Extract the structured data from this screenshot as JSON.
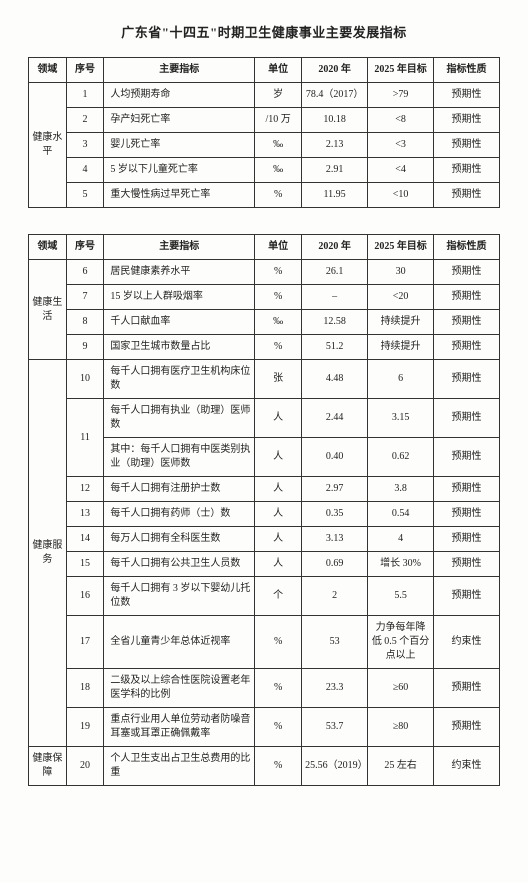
{
  "title": "广东省\"十四五\"时期卫生健康事业主要发展指标",
  "headers": {
    "domain": "领域",
    "seq": "序号",
    "indicator": "主要指标",
    "unit": "单位",
    "y2020": "2020 年",
    "y2025": "2025 年目标",
    "type": "指标性质"
  },
  "tables": [
    {
      "domains": [
        {
          "name": "健康水平",
          "rows": [
            {
              "seq": "1",
              "indicator": "人均预期寿命",
              "unit": "岁",
              "y2020": "78.4（2017）",
              "y2025": ">79",
              "type": "预期性"
            },
            {
              "seq": "2",
              "indicator": "孕产妇死亡率",
              "unit": "/10 万",
              "y2020": "10.18",
              "y2025": "<8",
              "type": "预期性"
            },
            {
              "seq": "3",
              "indicator": "婴儿死亡率",
              "unit": "‰",
              "y2020": "2.13",
              "y2025": "<3",
              "type": "预期性"
            },
            {
              "seq": "4",
              "indicator": "5 岁以下儿童死亡率",
              "unit": "‰",
              "y2020": "2.91",
              "y2025": "<4",
              "type": "预期性"
            },
            {
              "seq": "5",
              "indicator": "重大慢性病过早死亡率",
              "unit": "%",
              "y2020": "11.95",
              "y2025": "<10",
              "type": "预期性"
            }
          ]
        }
      ]
    },
    {
      "domains": [
        {
          "name": "健康生活",
          "rows": [
            {
              "seq": "6",
              "indicator": "居民健康素养水平",
              "unit": "%",
              "y2020": "26.1",
              "y2025": "30",
              "type": "预期性"
            },
            {
              "seq": "7",
              "indicator": "15 岁以上人群吸烟率",
              "unit": "%",
              "y2020": "–",
              "y2025": "<20",
              "type": "预期性"
            },
            {
              "seq": "8",
              "indicator": "千人口献血率",
              "unit": "‰",
              "y2020": "12.58",
              "y2025": "持续提升",
              "type": "预期性"
            },
            {
              "seq": "9",
              "indicator": "国家卫生城市数量占比",
              "unit": "%",
              "y2020": "51.2",
              "y2025": "持续提升",
              "type": "预期性"
            }
          ]
        },
        {
          "name": "健康服务",
          "rows": [
            {
              "seq": "10",
              "indicator": "每千人口拥有医疗卫生机构床位数",
              "unit": "张",
              "y2020": "4.48",
              "y2025": "6",
              "type": "预期性"
            },
            {
              "seq": "11",
              "indicator": "每千人口拥有执业（助理）医师数",
              "unit": "人",
              "y2020": "2.44",
              "y2025": "3.15",
              "type": "预期性",
              "sub": {
                "indicator": "其中：每千人口拥有中医类别执业（助理）医师数",
                "unit": "人",
                "y2020": "0.40",
                "y2025": "0.62",
                "type": "预期性"
              }
            },
            {
              "seq": "12",
              "indicator": "每千人口拥有注册护士数",
              "unit": "人",
              "y2020": "2.97",
              "y2025": "3.8",
              "type": "预期性"
            },
            {
              "seq": "13",
              "indicator": "每千人口拥有药师（士）数",
              "unit": "人",
              "y2020": "0.35",
              "y2025": "0.54",
              "type": "预期性"
            },
            {
              "seq": "14",
              "indicator": "每万人口拥有全科医生数",
              "unit": "人",
              "y2020": "3.13",
              "y2025": "4",
              "type": "预期性"
            },
            {
              "seq": "15",
              "indicator": "每千人口拥有公共卫生人员数",
              "unit": "人",
              "y2020": "0.69",
              "y2025": "增长 30%",
              "type": "预期性"
            },
            {
              "seq": "16",
              "indicator": "每千人口拥有 3 岁以下婴幼儿托位数",
              "unit": "个",
              "y2020": "2",
              "y2025": "5.5",
              "type": "预期性"
            },
            {
              "seq": "17",
              "indicator": "全省儿童青少年总体近视率",
              "unit": "%",
              "y2020": "53",
              "y2025": "力争每年降低 0.5 个百分点以上",
              "type": "约束性"
            },
            {
              "seq": "18",
              "indicator": "二级及以上综合性医院设置老年医学科的比例",
              "unit": "%",
              "y2020": "23.3",
              "y2025": "≥60",
              "type": "预期性"
            },
            {
              "seq": "19",
              "indicator": "重点行业用人单位劳动者防噪音耳塞或耳罩正确佩戴率",
              "unit": "%",
              "y2020": "53.7",
              "y2025": "≥80",
              "type": "预期性"
            }
          ]
        },
        {
          "name": "健康保障",
          "rows": [
            {
              "seq": "20",
              "indicator": "个人卫生支出占卫生总费用的比重",
              "unit": "%",
              "y2020": "25.56（2019）",
              "y2025": "25 左右",
              "type": "约束性"
            }
          ]
        }
      ]
    }
  ],
  "style": {
    "text_color": "#222222",
    "border_color": "#333333",
    "background": "#fdfdfb",
    "title_fontsize": 13,
    "body_fontsize": 10
  }
}
